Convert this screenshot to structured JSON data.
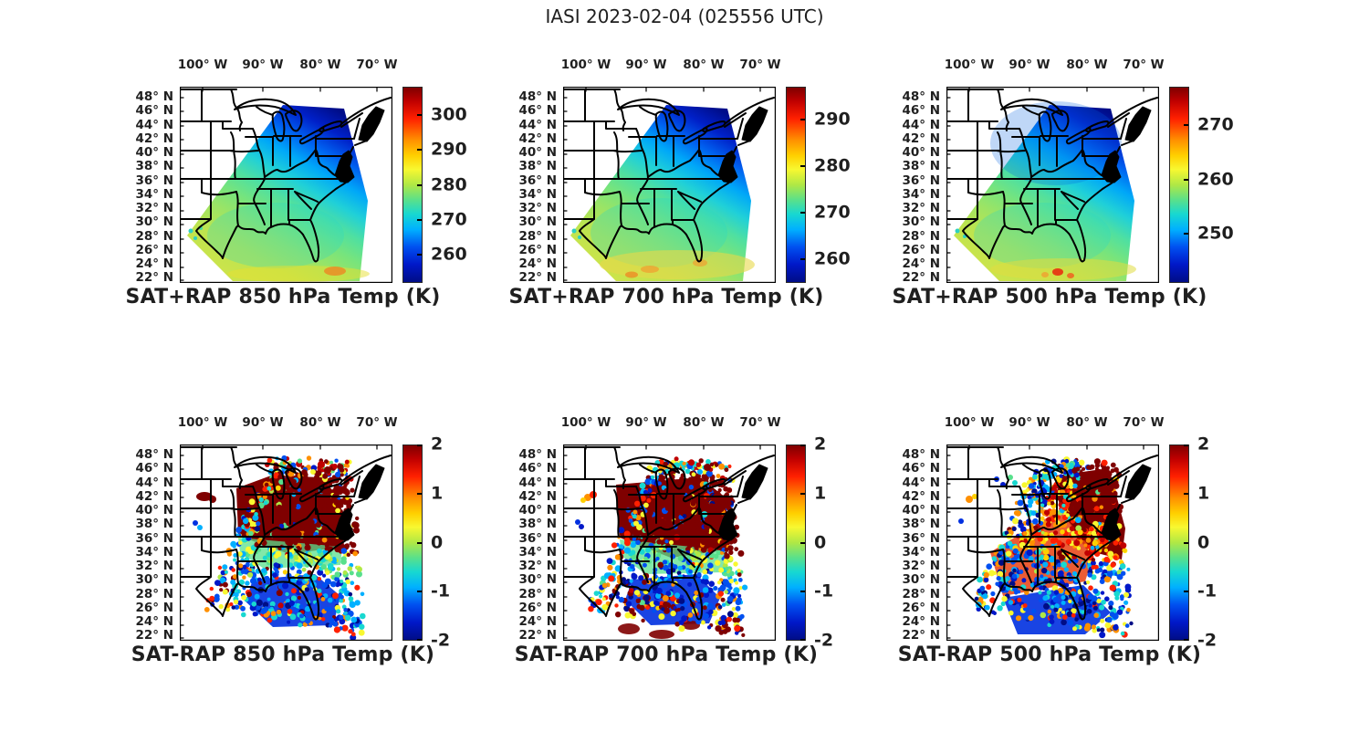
{
  "figure": {
    "title": "IASI 2023-02-04 (025556 UTC)",
    "instrument": "IASI",
    "date": "2023-02-04",
    "time_utc": "025556",
    "background": "#ffffff"
  },
  "axes": {
    "lon_ticks": [
      "100° W",
      "90° W",
      "80° W",
      "70° W"
    ],
    "lat_ticks": [
      "48° N",
      "46° N",
      "44° N",
      "42° N",
      "40° N",
      "38° N",
      "36° N",
      "34° N",
      "32° N",
      "30° N",
      "28° N",
      "26° N",
      "24° N",
      "22° N"
    ]
  },
  "colors": {
    "map_outline": "#000000",
    "text": "#1f1f1f",
    "colormap": "jet"
  },
  "chart_data": [
    {
      "panel": "top-left",
      "type": "heatmap",
      "title": "SAT+RAP 850 hPa Temp (K)",
      "field": "SAT+RAP",
      "level_hPa": 850,
      "units": "K",
      "colorbar": {
        "colormap": "jet",
        "min": 252,
        "max": 308,
        "ticks": [
          300,
          290,
          280,
          270,
          260
        ]
      },
      "pattern": "Coldest air (~255-263 K, dark blue) over the Great Lakes and upper Midwest; 268-278 K (cyan/green) across the central Plains and Gulf states; ~280-285 K (yellow-green, small orange patches) along the western swath edge and far southern Gulf."
    },
    {
      "panel": "top-middle",
      "type": "heatmap",
      "title": "SAT+RAP 700 hPa Temp (K)",
      "field": "SAT+RAP",
      "level_hPa": 700,
      "units": "K",
      "colorbar": {
        "colormap": "jet",
        "min": 255,
        "max": 297,
        "ticks": [
          290,
          280,
          270,
          260
        ]
      },
      "pattern": "Dark blue (~258-264 K) over the Great Lakes region; cyan/green (268-275 K) over the central US; yellow band with orange patches (~278-282 K) across the southern Gulf near 22-26 N."
    },
    {
      "panel": "top-right",
      "type": "heatmap",
      "title": "SAT+RAP 500 hPa Temp (K)",
      "field": "SAT+RAP",
      "level_hPa": 500,
      "units": "K",
      "colorbar": {
        "colormap": "jet",
        "min": 241,
        "max": 277,
        "ticks": [
          270,
          260,
          250
        ]
      },
      "pattern": "Dark blue (~245-250 K) over the Great Lakes/Northeast swath corner; cyan/blue (250-257 K) over the central US; green-yellow (~260-263 K) over the southern Gulf with a small orange spot (~266 K) near the bottom center."
    },
    {
      "panel": "bottom-left",
      "type": "scatter",
      "title": "SAT-RAP 850 hPa Temp (K)",
      "field": "SAT-RAP",
      "level_hPa": 850,
      "units": "K",
      "colorbar": {
        "colormap": "jet",
        "min": -2,
        "max": 2,
        "ticks": [
          2,
          1,
          0,
          -1,
          -2
        ]
      },
      "pattern": "Differences saturated at +2 K (dark red) over the Midwest and Ohio Valley; near 0 to -0.5 K (green/cyan) band across the central Gulf states; -1 to -2 K (blue/dark blue) over the Gulf of Mexico and Florida waters with scattered mixed outliers along the swath edges."
    },
    {
      "panel": "bottom-middle",
      "type": "scatter",
      "title": "SAT-RAP 700 hPa Temp (K)",
      "field": "SAT-RAP",
      "level_hPa": 700,
      "units": "K",
      "colorbar": {
        "colormap": "jet",
        "min": -2,
        "max": 2,
        "ticks": [
          2,
          1,
          0,
          -1,
          -2
        ]
      },
      "pattern": "Large +2 K (dark red) region over the Midwest/Ohio Valley; green/cyan near-zero band around 32-34 N; -1 to -2 K (blue) over the northern Gulf; chaotic mix of +2 K and -2 K points along the southern swath edge (22-26 N)."
    },
    {
      "panel": "bottom-right",
      "type": "scatter",
      "title": "SAT-RAP 500 hPa Temp (K)",
      "field": "SAT-RAP",
      "level_hPa": 500,
      "units": "K",
      "colorbar": {
        "colormap": "jet",
        "min": -2,
        "max": 2,
        "ticks": [
          2,
          1,
          0,
          -1,
          -2
        ]
      },
      "pattern": "Saturated +2 K (dark red) block over the Great Lakes/Northeast; +0.5 to +2 K (orange/red with yellow streaks) over the central and southern US; -1 to -2 K (blue/dark blue) over the Gulf of Mexico; cold blue speckle along the northwest swath edge."
    }
  ]
}
